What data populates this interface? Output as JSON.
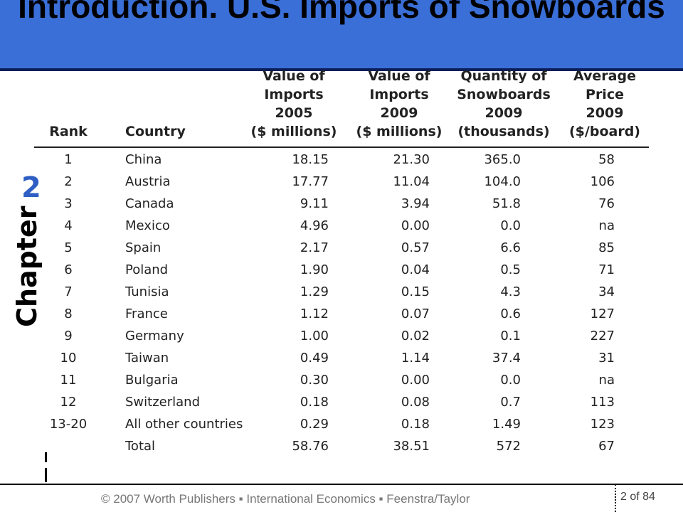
{
  "title": "Introduction. U.S. Imports of Snowboards",
  "chapter": {
    "word": "Chapter",
    "number": "2"
  },
  "table": {
    "headers": {
      "rank": "Rank",
      "country": "Country",
      "v05": "Value of\nImports\n2005\n($ millions)",
      "v09": "Value of\nImports\n2009\n($ millions)",
      "qty": "Quantity of\nSnowboards\n2009\n(thousands)",
      "price": "Average\nPrice\n2009\n($/board)"
    },
    "rows": [
      {
        "rank": "1",
        "country": "China",
        "v05": "18.15",
        "v09": "21.30",
        "qty": "365.0",
        "price": "58"
      },
      {
        "rank": "2",
        "country": "Austria",
        "v05": "17.77",
        "v09": "11.04",
        "qty": "104.0",
        "price": "106"
      },
      {
        "rank": "3",
        "country": "Canada",
        "v05": "9.11",
        "v09": "3.94",
        "qty": "51.8",
        "price": "76"
      },
      {
        "rank": "4",
        "country": "Mexico",
        "v05": "4.96",
        "v09": "0.00",
        "qty": "0.0",
        "price": "na"
      },
      {
        "rank": "5",
        "country": "Spain",
        "v05": "2.17",
        "v09": "0.57",
        "qty": "6.6",
        "price": "85"
      },
      {
        "rank": "6",
        "country": "Poland",
        "v05": "1.90",
        "v09": "0.04",
        "qty": "0.5",
        "price": "71"
      },
      {
        "rank": "7",
        "country": "Tunisia",
        "v05": "1.29",
        "v09": "0.15",
        "qty": "4.3",
        "price": "34"
      },
      {
        "rank": "8",
        "country": "France",
        "v05": "1.12",
        "v09": "0.07",
        "qty": "0.6",
        "price": "127"
      },
      {
        "rank": "9",
        "country": "Germany",
        "v05": "1.00",
        "v09": "0.02",
        "qty": "0.1",
        "price": "227"
      },
      {
        "rank": "10",
        "country": "Taiwan",
        "v05": "0.49",
        "v09": "1.14",
        "qty": "37.4",
        "price": "31"
      },
      {
        "rank": "11",
        "country": "Bulgaria",
        "v05": "0.30",
        "v09": "0.00",
        "qty": "0.0",
        "price": "na"
      },
      {
        "rank": "12",
        "country": "Switzerland",
        "v05": "0.18",
        "v09": "0.08",
        "qty": "0.7",
        "price": "113"
      },
      {
        "rank": "13-20",
        "country": "All other countries",
        "v05": "0.29",
        "v09": "0.18",
        "qty": "1.49",
        "price": "123"
      },
      {
        "rank": "",
        "country": "Total",
        "v05": "58.76",
        "v09": "38.51",
        "qty": "572",
        "price": "67"
      }
    ]
  },
  "footer": {
    "text": "© 2007 Worth Publishers ▪ International Economics ▪ Feenstra/Taylor",
    "page": "2 of 84"
  }
}
